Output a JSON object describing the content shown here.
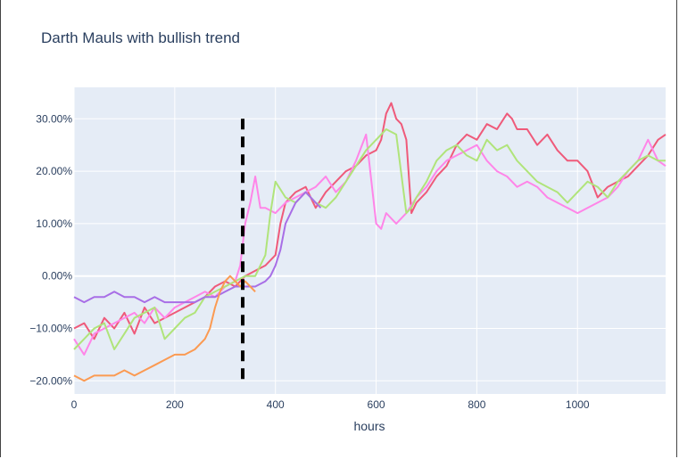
{
  "chart_data": {
    "type": "line",
    "title": "Darth Mauls with bullish trend",
    "xlabel": "hours",
    "ylabel": "",
    "xlim": [
      0,
      1175
    ],
    "ylim": [
      -22.5,
      36
    ],
    "x_ticks": [
      0,
      200,
      400,
      600,
      800,
      1000
    ],
    "x_tick_labels": [
      "0",
      "200",
      "400",
      "600",
      "800",
      "1000"
    ],
    "y_ticks": [
      -20,
      -10,
      0,
      10,
      20,
      30
    ],
    "y_tick_labels": [
      "−20.00%",
      "−10.00%",
      "0.00%",
      "10.00%",
      "20.00%",
      "30.00%"
    ],
    "grid": true,
    "plot_background": "#e5ecf6",
    "vline": {
      "x": 335,
      "y_range": [
        -20,
        30
      ],
      "style": "dashed",
      "color": "#000000"
    },
    "series": [
      {
        "color": "#ef5a7a",
        "x": [
          0,
          20,
          40,
          60,
          80,
          100,
          120,
          140,
          160,
          180,
          200,
          220,
          240,
          260,
          280,
          300,
          320,
          340,
          360,
          380,
          400,
          410,
          420,
          440,
          460,
          480,
          500,
          520,
          540,
          560,
          580,
          600,
          610,
          620,
          630,
          640,
          650,
          660,
          670,
          680,
          700,
          720,
          740,
          760,
          780,
          800,
          820,
          840,
          860,
          870,
          880,
          900,
          920,
          940,
          960,
          980,
          1000,
          1020,
          1040,
          1060,
          1080,
          1100,
          1120,
          1140,
          1160,
          1175
        ],
        "y": [
          -10,
          -9,
          -12,
          -8,
          -10,
          -7,
          -11,
          -6,
          -9,
          -8,
          -7,
          -6,
          -5,
          -4,
          -2,
          -1,
          -2,
          0,
          1,
          2,
          4,
          10,
          14,
          16,
          17,
          13,
          16,
          18,
          20,
          21,
          23,
          24,
          26,
          31,
          33,
          30,
          29,
          26,
          12,
          14,
          16,
          19,
          21,
          25,
          27,
          26,
          29,
          28,
          31,
          30,
          28,
          28,
          25,
          27,
          24,
          22,
          22,
          20,
          15,
          17,
          18,
          19,
          21,
          23,
          26,
          27
        ]
      },
      {
        "color": "#ff85e8",
        "x": [
          0,
          20,
          40,
          60,
          80,
          100,
          120,
          140,
          160,
          180,
          200,
          220,
          240,
          260,
          280,
          300,
          320,
          330,
          340,
          350,
          360,
          370,
          380,
          400,
          420,
          440,
          460,
          480,
          500,
          520,
          540,
          560,
          580,
          600,
          610,
          620,
          640,
          660,
          680,
          700,
          720,
          740,
          760,
          780,
          800,
          820,
          840,
          860,
          880,
          900,
          920,
          940,
          960,
          980,
          1000,
          1020,
          1040,
          1060,
          1080,
          1100,
          1120,
          1140,
          1160,
          1175
        ],
        "y": [
          -12,
          -15,
          -11,
          -10,
          -9,
          -8,
          -7,
          -9,
          -6,
          -8,
          -6,
          -5,
          -4,
          -3,
          -4,
          -2,
          -1,
          2,
          10,
          14,
          19,
          13,
          13,
          12,
          14,
          15,
          16,
          17,
          19,
          16,
          18,
          22,
          27,
          10,
          9,
          12,
          10,
          12,
          15,
          17,
          20,
          22,
          23,
          24,
          25,
          22,
          20,
          19,
          17,
          18,
          17,
          15,
          14,
          13,
          12,
          13,
          14,
          15,
          17,
          20,
          22,
          26,
          22,
          21
        ]
      },
      {
        "color": "#b0e47a",
        "x": [
          0,
          20,
          40,
          60,
          80,
          100,
          120,
          140,
          160,
          180,
          200,
          220,
          240,
          260,
          280,
          300,
          320,
          340,
          360,
          380,
          390,
          400,
          420,
          440,
          460,
          480,
          500,
          520,
          540,
          560,
          580,
          600,
          620,
          640,
          660,
          670,
          680,
          700,
          720,
          740,
          760,
          780,
          800,
          820,
          840,
          860,
          880,
          900,
          920,
          940,
          960,
          980,
          1000,
          1020,
          1040,
          1060,
          1080,
          1100,
          1120,
          1140,
          1160,
          1175
        ],
        "y": [
          -14,
          -12,
          -10,
          -9,
          -14,
          -11,
          -8,
          -7,
          -6,
          -12,
          -10,
          -8,
          -7,
          -4,
          -3,
          -2,
          -1,
          0,
          0,
          4,
          12,
          18,
          15,
          14,
          16,
          14,
          13,
          15,
          18,
          21,
          24,
          26,
          28,
          27,
          12,
          13,
          15,
          18,
          22,
          24,
          25,
          23,
          22,
          26,
          24,
          25,
          22,
          20,
          18,
          17,
          16,
          14,
          16,
          18,
          17,
          15,
          18,
          20,
          22,
          23,
          22,
          22
        ]
      },
      {
        "color": "#a86ee6",
        "x": [
          0,
          20,
          40,
          60,
          80,
          100,
          120,
          140,
          160,
          180,
          200,
          220,
          240,
          260,
          280,
          300,
          320,
          340,
          360,
          380,
          390,
          400,
          410,
          420,
          440,
          460,
          480,
          490
        ],
        "y": [
          -4,
          -5,
          -4,
          -4,
          -3,
          -4,
          -4,
          -5,
          -4,
          -5,
          -5,
          -5,
          -5,
          -4,
          -4,
          -3,
          -2,
          -2,
          -2,
          -1,
          0,
          2,
          5,
          10,
          14,
          16,
          14,
          13
        ]
      },
      {
        "color": "#fb9a52",
        "x": [
          0,
          20,
          40,
          60,
          80,
          100,
          120,
          140,
          160,
          180,
          200,
          220,
          240,
          260,
          270,
          280,
          290,
          300,
          310,
          320,
          330,
          340,
          350,
          360
        ],
        "y": [
          -19,
          -20,
          -19,
          -19,
          -19,
          -18,
          -19,
          -18,
          -17,
          -16,
          -15,
          -15,
          -14,
          -12,
          -10,
          -6,
          -3,
          -1,
          0,
          -1,
          -2,
          -1,
          -2,
          -3
        ]
      }
    ]
  }
}
